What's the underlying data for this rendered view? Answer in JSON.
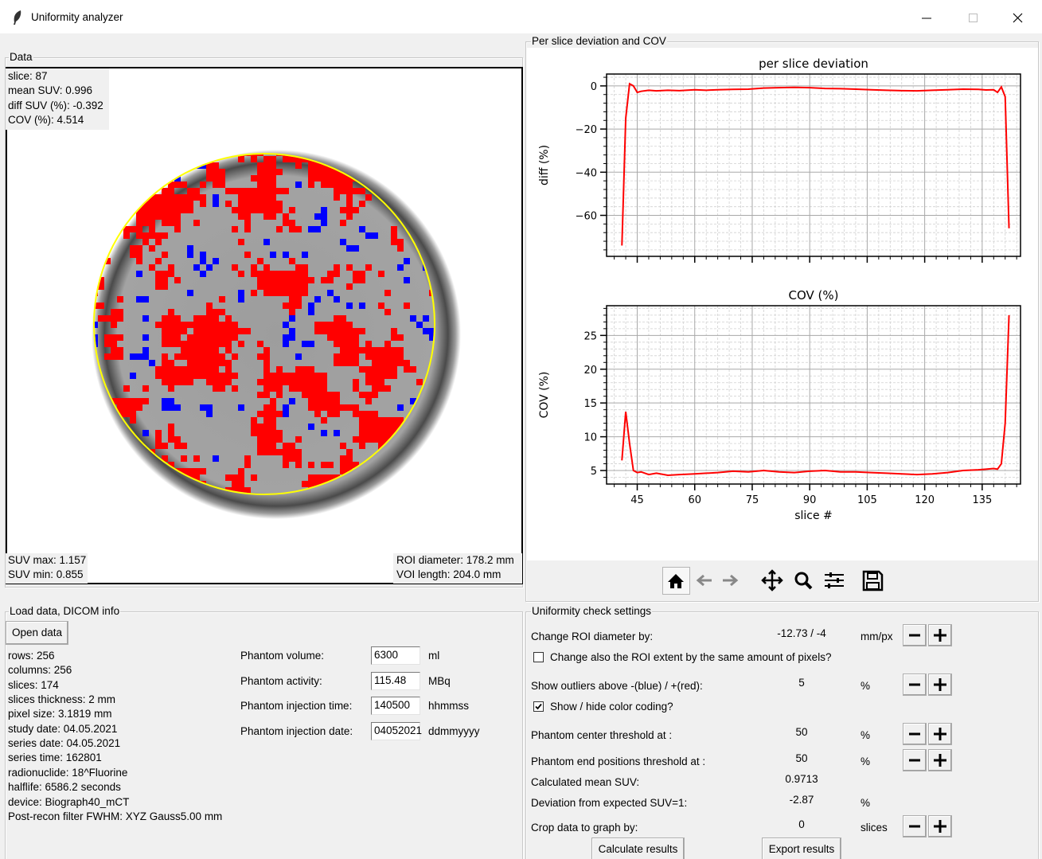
{
  "window": {
    "title": "Uniformity analyzer"
  },
  "data_panel": {
    "label": "Data",
    "info": [
      "slice: 87",
      "mean SUV: 0.996",
      "diff SUV (%): -0.392",
      "COV (%): 4.514"
    ],
    "stats": [
      "SUV max: 1.157",
      "SUV min: 0.855"
    ],
    "roi_info": [
      "ROI diameter: 178.2 mm",
      "VOI length: 204.0 mm"
    ]
  },
  "plot_panel": {
    "label": "Per slice deviation and COV"
  },
  "chart_data": [
    {
      "type": "line",
      "title": "per slice deviation",
      "ylabel": "diff (%)",
      "x": [
        41,
        42,
        43,
        44,
        45,
        46,
        48,
        50,
        53,
        56,
        60,
        63,
        66,
        70,
        74,
        78,
        82,
        86,
        90,
        94,
        98,
        102,
        106,
        110,
        114,
        118,
        122,
        126,
        130,
        134,
        136,
        138,
        139,
        140,
        141,
        142
      ],
      "values": [
        -74,
        -15,
        1,
        0,
        -3,
        -2.5,
        -2,
        -2.3,
        -2,
        -2.2,
        -1.8,
        -2,
        -1.8,
        -1.6,
        -1.5,
        -1,
        -0.8,
        -0.7,
        -0.8,
        -1.2,
        -1.3,
        -1.5,
        -1.8,
        -2,
        -2.2,
        -2.3,
        -2,
        -1.8,
        -1.5,
        -1.6,
        -1.9,
        -1.8,
        -3,
        -0.5,
        -5,
        -66
      ],
      "color": "#ff0000",
      "xlim": [
        37,
        145
      ],
      "ylim": [
        -79,
        5.5
      ],
      "xticks": [
        45,
        60,
        75,
        90,
        105,
        120,
        135
      ],
      "xminorticks": [
        39,
        42,
        48,
        51,
        54,
        57,
        63,
        66,
        69,
        72,
        78,
        81,
        84,
        87,
        93,
        96,
        99,
        102,
        108,
        111,
        114,
        117,
        123,
        126,
        129,
        132,
        138,
        141,
        144
      ],
      "yticks": [
        {
          "value": -60,
          "label": "−60"
        },
        {
          "value": -40,
          "label": "−40"
        },
        {
          "value": -20,
          "label": "−20"
        },
        0
      ],
      "yminorticks": [
        -76,
        -72,
        -68,
        -64,
        -56,
        -52,
        -48,
        -44,
        -36,
        -32,
        -28,
        -24,
        -16,
        -12,
        -8,
        -4,
        4
      ],
      "grid": true
    },
    {
      "type": "line",
      "title": "COV (%)",
      "ylabel": "COV (%)",
      "xlabel": "slice #",
      "x": [
        41,
        42,
        43,
        44,
        45,
        46,
        48,
        50,
        53,
        56,
        60,
        63,
        66,
        70,
        74,
        78,
        82,
        86,
        90,
        94,
        98,
        102,
        106,
        110,
        114,
        118,
        122,
        126,
        130,
        134,
        136,
        138,
        139,
        140,
        141,
        142
      ],
      "values": [
        6.5,
        13.7,
        9,
        5,
        4.7,
        4.8,
        4.4,
        4.6,
        4.3,
        4.4,
        4.5,
        4.6,
        4.7,
        4.9,
        4.8,
        5,
        4.8,
        4.7,
        4.9,
        5,
        4.8,
        4.8,
        4.7,
        4.6,
        4.5,
        4.4,
        4.5,
        4.7,
        5,
        5.1,
        5.2,
        5.3,
        5.2,
        6,
        12,
        28
      ],
      "color": "#ff0000",
      "xlim": [
        37,
        145
      ],
      "ylim": [
        3,
        29.4
      ],
      "xticks": [
        45,
        60,
        75,
        90,
        105,
        120,
        135
      ],
      "xminorticks": [
        39,
        42,
        48,
        51,
        54,
        57,
        63,
        66,
        69,
        72,
        78,
        81,
        84,
        87,
        93,
        96,
        99,
        102,
        108,
        111,
        114,
        117,
        123,
        126,
        129,
        132,
        138,
        141,
        144
      ],
      "yticks": [
        5,
        10,
        15,
        20,
        25
      ],
      "yminorticks": [
        4,
        6,
        7,
        8,
        9,
        11,
        12,
        13,
        14,
        16,
        17,
        18,
        19,
        21,
        22,
        23,
        24,
        26,
        27,
        28,
        29
      ],
      "grid": true
    }
  ],
  "load_panel": {
    "label": "Load data, DICOM info",
    "button": "Open data",
    "info": [
      "rows: 256",
      "columns: 256",
      "slices: 174",
      "slices thickness: 2 mm",
      "pixel size: 3.1819 mm",
      "study date: 04.05.2021",
      "series date: 04.05.2021",
      "series time: 162801",
      "radionuclide: 18^Fluorine",
      "halflife: 6586.2 seconds",
      "device: Biograph40_mCT",
      "Post-recon filter FWHM: XYZ Gauss5.00 mm"
    ],
    "fields": [
      {
        "label": "Phantom volume:",
        "value": "6300",
        "unit": "ml"
      },
      {
        "label": "Phantom activity:",
        "value": "115.48",
        "unit": "MBq"
      },
      {
        "label": "Phantom injection time:",
        "value": "140500",
        "unit": "hhmmss"
      },
      {
        "label": "Phantom injection date:",
        "value": "04052021",
        "unit": "ddmmyyyy"
      }
    ]
  },
  "settings_panel": {
    "label": "Uniformity check settings",
    "rows": [
      {
        "label": "Change ROI diameter by:",
        "value": "-12.73 / -4",
        "unit": "mm/px",
        "stepper": true
      },
      {
        "label": "Change also the ROI extent by the same amount of pixels?",
        "checked": false
      },
      {
        "label": "Show outliers above -(blue) / +(red):",
        "value": "5",
        "unit": "%",
        "stepper": true
      },
      {
        "label": "Show / hide color coding?",
        "checked": true
      },
      {
        "label": "Phantom center threshold at :",
        "value": "50",
        "unit": "%",
        "stepper": true
      },
      {
        "label": "Phantom end positions threshold at :",
        "value": "50",
        "unit": "%",
        "stepper": true
      },
      {
        "label": "Calculated mean SUV:",
        "value": "0.9713"
      },
      {
        "label": "Deviation from expected SUV=1:",
        "value": "-2.87",
        "unit": "%"
      },
      {
        "label": "Crop data to graph by:",
        "value": "0",
        "unit": "slices",
        "stepper": true
      }
    ],
    "buttons": [
      "Calculate results",
      "Export results"
    ]
  }
}
